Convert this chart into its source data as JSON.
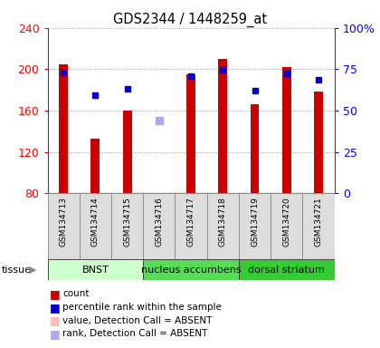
{
  "title": "GDS2344 / 1448259_at",
  "samples": [
    "GSM134713",
    "GSM134714",
    "GSM134715",
    "GSM134716",
    "GSM134717",
    "GSM134718",
    "GSM134719",
    "GSM134720",
    "GSM134721"
  ],
  "bar_values": [
    205,
    133,
    160,
    null,
    195,
    210,
    166,
    202,
    178
  ],
  "bar_color": "#cc0000",
  "ylim_left": [
    80,
    240
  ],
  "ylim_right": [
    0,
    100
  ],
  "yticks_left": [
    80,
    120,
    160,
    200,
    240
  ],
  "yticks_right": [
    0,
    25,
    50,
    75,
    100
  ],
  "blue_square_vals": [
    197,
    175,
    181,
    null,
    193,
    199,
    179,
    196,
    190
  ],
  "absent_rank_val": 150,
  "absent_index": 3,
  "tissue_groups": [
    {
      "label": "BNST",
      "start": 0,
      "end": 2,
      "color": "#ccffcc"
    },
    {
      "label": "nucleus accumbens",
      "start": 3,
      "end": 5,
      "color": "#55dd55"
    },
    {
      "label": "dorsal striatum",
      "start": 6,
      "end": 8,
      "color": "#33cc33"
    }
  ],
  "legend_items": [
    {
      "color": "#cc0000",
      "label": "count"
    },
    {
      "color": "#0000cc",
      "label": "percentile rank within the sample"
    },
    {
      "color": "#ffbbbb",
      "label": "value, Detection Call = ABSENT"
    },
    {
      "color": "#aaaaee",
      "label": "rank, Detection Call = ABSENT"
    }
  ],
  "bar_width": 0.28,
  "grid_color": "#999999",
  "absent_bar_color": "#ffbbbb",
  "absent_rank_color": "#aaaaee"
}
